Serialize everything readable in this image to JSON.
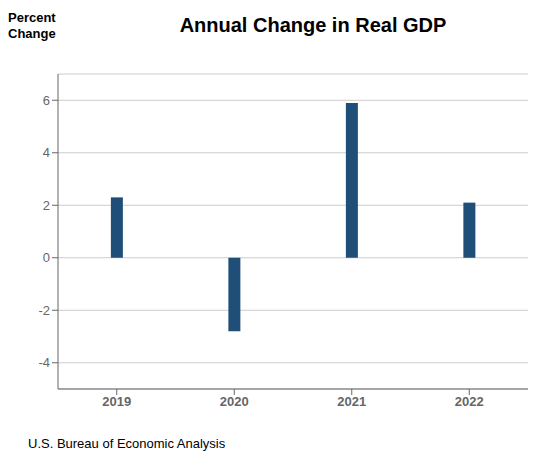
{
  "chart_data": {
    "type": "bar",
    "title": "Annual Change in Real GDP",
    "ylabel": "Percent\nChange",
    "categories": [
      "2019",
      "2020",
      "2021",
      "2022"
    ],
    "values": [
      2.3,
      -2.8,
      5.9,
      2.1
    ],
    "color": "#1F4E79",
    "ylim": [
      -5,
      7
    ],
    "yticks": [
      -4,
      -2,
      0,
      2,
      4,
      6
    ],
    "grid": true,
    "annotations": [
      "U.S. Bureau of Economic Analysis"
    ]
  }
}
